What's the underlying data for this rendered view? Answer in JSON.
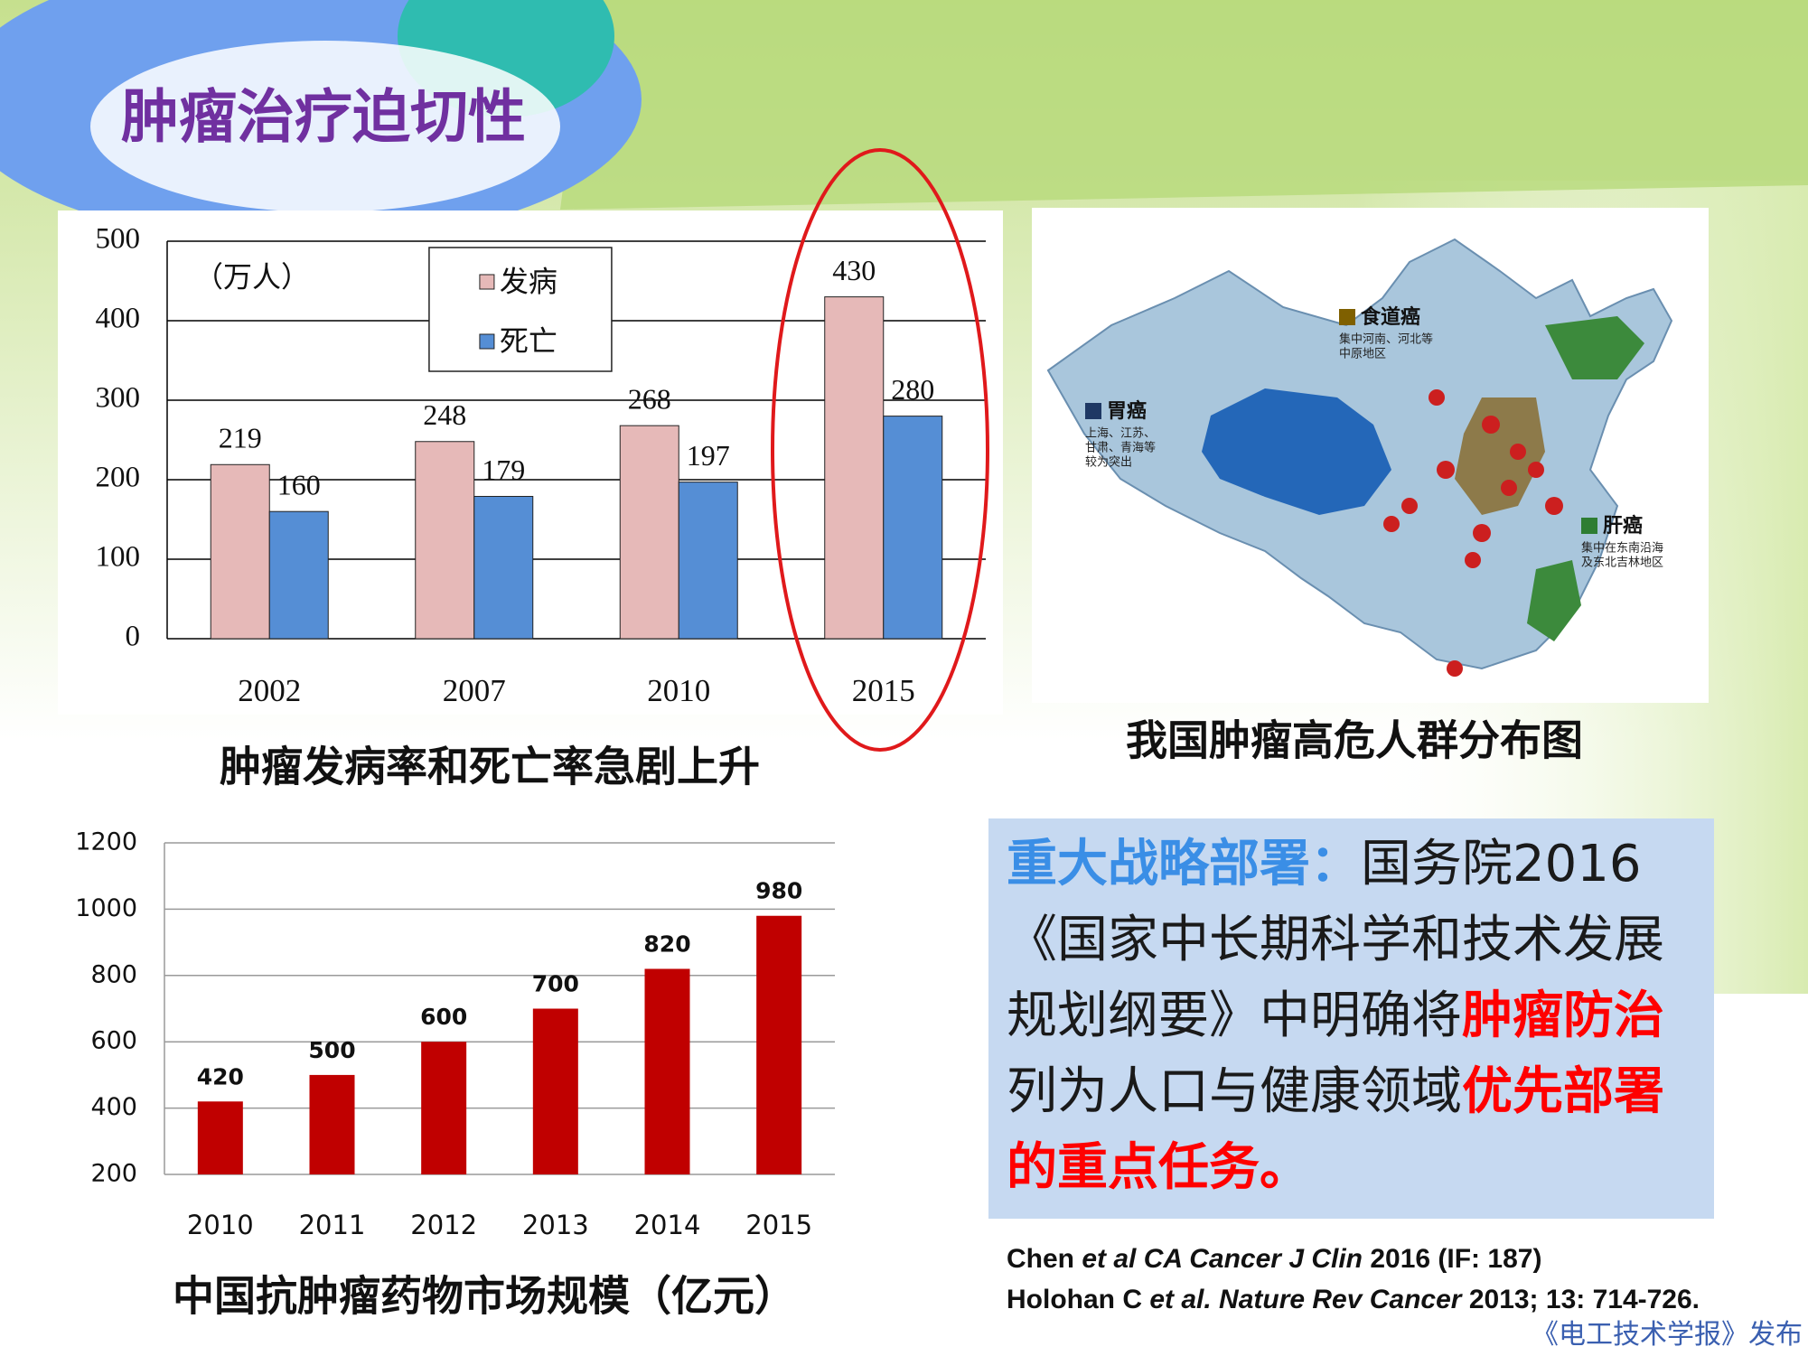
{
  "title": "肿瘤治疗迫切性",
  "chart_data": [
    {
      "type": "bar",
      "unit_label": "（万人）",
      "caption": "肿瘤发病率和死亡率急剧上升",
      "categories": [
        "2002",
        "2007",
        "2010",
        "2015"
      ],
      "series": [
        {
          "name": "发病",
          "color": "#e6b9b8",
          "values": [
            219,
            248,
            268,
            430
          ]
        },
        {
          "name": "死亡",
          "color": "#558ed5",
          "values": [
            160,
            179,
            197,
            280
          ]
        }
      ],
      "ylim": [
        0,
        500
      ],
      "yticks": [
        0,
        100,
        200,
        300,
        400,
        500
      ],
      "grid": true,
      "legend": "top-left",
      "data_labels": true
    },
    {
      "type": "bar",
      "caption": "中国抗肿瘤药物市场规模（亿元）",
      "categories": [
        "2010",
        "2011",
        "2012",
        "2013",
        "2014",
        "2015"
      ],
      "values": [
        420,
        500,
        600,
        700,
        820,
        980
      ],
      "color": "#c00000",
      "ylim": [
        200,
        1200
      ],
      "yticks": [
        200,
        400,
        600,
        800,
        1000,
        1200
      ],
      "grid": true,
      "data_labels": true
    }
  ],
  "map": {
    "caption": "我国肿瘤高危人群分布图",
    "legend": [
      {
        "name": "食道癌",
        "color": "#7f6000",
        "note": [
          "集中河南、河北等",
          "中原地区"
        ]
      },
      {
        "name": "胃癌",
        "color": "#1f3864",
        "note": [
          "上海、江苏、",
          "甘肃、青海等",
          "较为突出"
        ]
      },
      {
        "name": "肝癌",
        "color": "#2e7d32",
        "note": [
          "集中在东南沿海",
          "及东北吉林地区"
        ]
      }
    ]
  },
  "callout": {
    "lines": [
      [
        {
          "text": "重大战略部署：",
          "color": "#3a8ee6",
          "bold": true
        },
        {
          "text": "国务院2016",
          "color": "#1a1a1a",
          "bold": false
        }
      ],
      [
        {
          "text": "《国家中长期科学和技术发展",
          "color": "#1a1a1a",
          "bold": false
        }
      ],
      [
        {
          "text": "规划纲要》中明确将",
          "color": "#1a1a1a",
          "bold": false
        },
        {
          "text": "肿瘤防治",
          "color": "#ff0000",
          "bold": true
        }
      ],
      [
        {
          "text": "列为人口与健康领域",
          "color": "#1a1a1a",
          "bold": false
        },
        {
          "text": "优先部署",
          "color": "#ff0000",
          "bold": true
        }
      ],
      [
        {
          "text": "的重点任务。",
          "color": "#ff0000",
          "bold": true
        }
      ]
    ]
  },
  "references": [
    [
      {
        "text": "Chen ",
        "italic": false
      },
      {
        "text": "et al CA Cancer J Clin",
        "italic": true
      },
      {
        "text": " 2016 (IF: 187)",
        "italic": false
      }
    ],
    [
      {
        "text": "Holohan C ",
        "italic": false
      },
      {
        "text": "et al. Nature Rev Cancer",
        "italic": true
      },
      {
        "text": " 2013; 13: 714-726.",
        "italic": false
      }
    ]
  ],
  "watermark": "《电工技术学报》发布"
}
